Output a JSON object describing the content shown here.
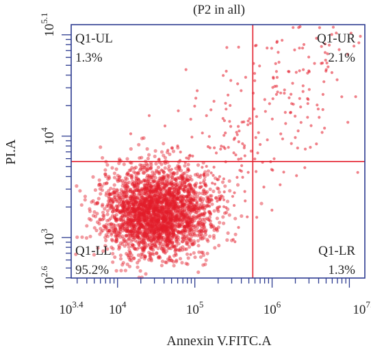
{
  "chart_data": {
    "type": "scatter",
    "title": "(P2 in all)",
    "xlabel": "Annexin V.FITC.A",
    "ylabel": "PI.A",
    "xscale": "log",
    "yscale": "log",
    "xlim_log10": [
      3.4,
      7.2
    ],
    "ylim_log10": [
      2.6,
      5.1
    ],
    "x_ticks": [
      {
        "base": "10",
        "exp": "3.4",
        "log": 3.4
      },
      {
        "base": "10",
        "exp": "4",
        "log": 4
      },
      {
        "base": "10",
        "exp": "5",
        "log": 5
      },
      {
        "base": "10",
        "exp": "6",
        "log": 6
      },
      {
        "base": "10",
        "exp": "7.2",
        "log": 7.2
      }
    ],
    "y_ticks": [
      {
        "base": "10",
        "exp": "2.6",
        "log": 2.6
      },
      {
        "base": "10",
        "exp": "3",
        "log": 3
      },
      {
        "base": "10",
        "exp": "4",
        "log": 4
      },
      {
        "base": "10",
        "exp": "5.1",
        "log": 5.1
      }
    ],
    "gate_x_log10": 5.75,
    "gate_y_log10": 3.75,
    "quadrants": [
      {
        "name": "Q1-UL",
        "value": "1.3%"
      },
      {
        "name": "Q1-UR",
        "value": "2.1%"
      },
      {
        "name": "Q1-LL",
        "value": "95.2%"
      },
      {
        "name": "Q1-LR",
        "value": "1.3%"
      }
    ],
    "populations_log10": [
      {
        "label": "main cluster",
        "center": [
          4.5,
          3.25
        ],
        "spread": [
          0.35,
          0.22
        ]
      },
      {
        "label": "diagonal tail",
        "center": [
          5.6,
          4.2
        ],
        "spread": [
          0.6,
          0.45
        ]
      }
    ],
    "colors": {
      "points": "#e31c2a",
      "gate_lines": "#e31c2a",
      "axes": "#2b3a8f"
    },
    "grid": false,
    "legend": "none"
  }
}
